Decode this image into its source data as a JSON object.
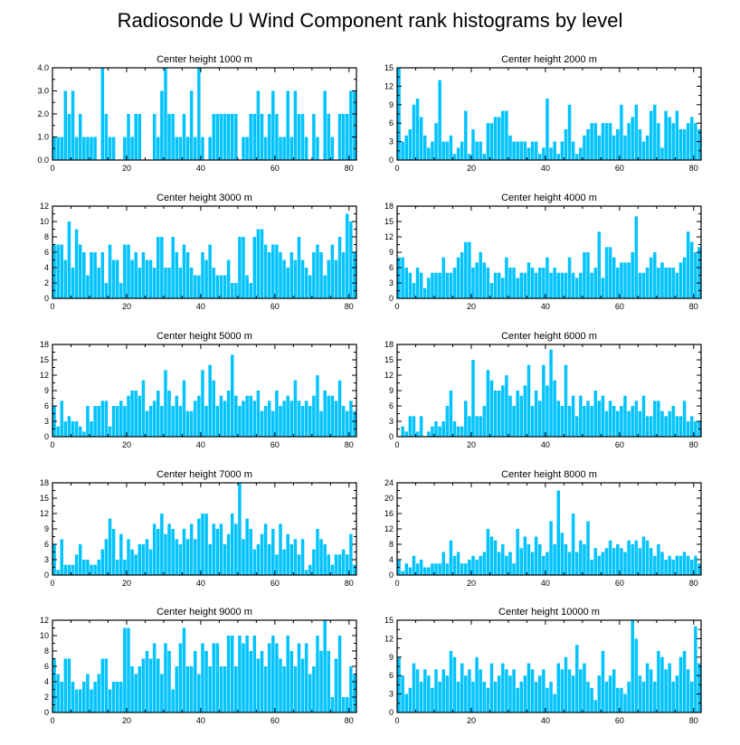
{
  "title": "Radiosonde U Wind Component rank histograms by level",
  "colors": {
    "bar": "#00c3ff",
    "axis": "#000000",
    "background": "#ffffff"
  },
  "chart_data": [
    {
      "type": "bar",
      "title": "Center height 1000 m",
      "xlim": [
        0,
        82
      ],
      "ylim": [
        0,
        4
      ],
      "xticks": [
        0,
        20,
        40,
        60,
        80
      ],
      "xtick_labels": [
        "0",
        "20",
        "40",
        "60",
        "80"
      ],
      "yticks": [
        0,
        1,
        2,
        3,
        4
      ],
      "ytick_labels": [
        "0.0",
        "1.0",
        "2.0",
        "3.0",
        "4.0"
      ],
      "values": [
        1,
        1,
        1,
        3,
        2,
        3,
        1,
        2,
        1,
        1,
        1,
        1,
        0,
        4,
        2,
        1,
        1,
        0,
        0,
        1,
        2,
        1,
        2,
        2,
        0,
        0,
        0,
        2,
        1,
        3,
        4,
        2,
        2,
        1,
        1,
        2,
        1,
        3,
        1,
        4,
        1,
        0,
        1,
        2,
        2,
        2,
        2,
        2,
        2,
        2,
        0,
        1,
        1,
        2,
        2,
        3,
        2,
        1,
        2,
        3,
        2,
        1,
        1,
        3,
        1,
        3,
        2,
        2,
        1,
        0,
        2,
        1,
        0,
        3,
        2,
        1,
        0,
        2,
        2,
        2,
        3,
        3
      ]
    },
    {
      "type": "bar",
      "title": "Center height 2000 m",
      "xlim": [
        0,
        82
      ],
      "ylim": [
        0,
        15
      ],
      "xticks": [
        0,
        20,
        40,
        60,
        80
      ],
      "xtick_labels": [
        "0",
        "20",
        "40",
        "60",
        "80"
      ],
      "yticks": [
        0,
        3,
        6,
        9,
        12,
        15
      ],
      "ytick_labels": [
        "0",
        "3",
        "6",
        "9",
        "12",
        "15"
      ],
      "values": [
        15,
        3,
        4,
        5,
        9,
        10,
        7,
        4,
        2,
        3,
        6,
        13,
        3,
        3,
        4,
        1,
        2,
        3,
        8,
        1,
        5,
        3,
        3,
        1,
        6,
        6,
        7,
        7,
        8,
        8,
        4,
        3,
        3,
        3,
        3,
        2,
        3,
        3,
        1,
        2,
        10,
        2,
        3,
        1,
        3,
        5,
        9,
        3,
        1,
        2,
        4,
        5,
        6,
        6,
        4,
        6,
        6,
        6,
        4,
        5,
        9,
        4,
        6,
        7,
        9,
        5,
        3,
        4,
        8,
        9,
        6,
        2,
        8,
        7,
        6,
        8,
        5,
        5,
        6,
        7,
        6,
        5
      ]
    },
    {
      "type": "bar",
      "title": "Center height 3000 m",
      "xlim": [
        0,
        82
      ],
      "ylim": [
        0,
        12
      ],
      "xticks": [
        0,
        20,
        40,
        60,
        80
      ],
      "xtick_labels": [
        "0",
        "20",
        "40",
        "60",
        "80"
      ],
      "yticks": [
        0,
        2,
        4,
        6,
        8,
        10,
        12
      ],
      "ytick_labels": [
        "0",
        "2",
        "4",
        "6",
        "8",
        "10",
        "12"
      ],
      "values": [
        7,
        7,
        7,
        5,
        10,
        4,
        9,
        7,
        6,
        3,
        6,
        6,
        4,
        6,
        2,
        7,
        5,
        5,
        2,
        7,
        7,
        5,
        6,
        4,
        6,
        5,
        5,
        4,
        8,
        8,
        4,
        4,
        8,
        6,
        4,
        7,
        6,
        4,
        3,
        3,
        6,
        5,
        7,
        4,
        3,
        3,
        3,
        5,
        2,
        2,
        8,
        8,
        3,
        2,
        8,
        9,
        9,
        7,
        6,
        7,
        7,
        6,
        5,
        4,
        6,
        5,
        8,
        5,
        4,
        3,
        6,
        7,
        6,
        3,
        5,
        7,
        5,
        8,
        6,
        11,
        10,
        6
      ]
    },
    {
      "type": "bar",
      "title": "Center height 4000 m",
      "xlim": [
        0,
        82
      ],
      "ylim": [
        0,
        18
      ],
      "xticks": [
        0,
        20,
        40,
        60,
        80
      ],
      "xtick_labels": [
        "0",
        "20",
        "40",
        "60",
        "80"
      ],
      "yticks": [
        0,
        3,
        6,
        9,
        12,
        15,
        18
      ],
      "ytick_labels": [
        "0",
        "3",
        "6",
        "9",
        "12",
        "15",
        "18"
      ],
      "values": [
        8,
        8,
        6,
        5,
        3,
        6,
        5,
        2,
        4,
        5,
        5,
        5,
        8,
        5,
        5,
        6,
        8,
        9,
        11,
        11,
        6,
        7,
        9,
        7,
        6,
        3,
        5,
        5,
        4,
        8,
        6,
        6,
        4,
        5,
        5,
        7,
        6,
        5,
        6,
        6,
        8,
        5,
        6,
        5,
        5,
        5,
        8,
        5,
        4,
        5,
        9,
        9,
        5,
        6,
        13,
        4,
        10,
        10,
        8,
        6,
        7,
        7,
        7,
        9,
        16,
        5,
        5,
        6,
        8,
        9,
        6,
        7,
        6,
        6,
        6,
        5,
        7,
        8,
        13,
        11,
        9,
        10
      ]
    },
    {
      "type": "bar",
      "title": "Center height 5000 m",
      "xlim": [
        0,
        82
      ],
      "ylim": [
        0,
        18
      ],
      "xticks": [
        0,
        20,
        40,
        60,
        80
      ],
      "xtick_labels": [
        "0",
        "20",
        "40",
        "60",
        "80"
      ],
      "yticks": [
        0,
        3,
        6,
        9,
        12,
        15,
        18
      ],
      "ytick_labels": [
        "0",
        "3",
        "6",
        "9",
        "12",
        "15",
        "18"
      ],
      "values": [
        6,
        2,
        7,
        3,
        4,
        3,
        3,
        2,
        1,
        6,
        3,
        6,
        6,
        7,
        7,
        2,
        6,
        6,
        7,
        6,
        8,
        9,
        9,
        8,
        11,
        5,
        6,
        7,
        9,
        6,
        13,
        9,
        6,
        8,
        6,
        11,
        5,
        5,
        7,
        8,
        13,
        6,
        14,
        11,
        6,
        8,
        7,
        9,
        16,
        8,
        6,
        7,
        8,
        8,
        7,
        9,
        5,
        6,
        7,
        5,
        9,
        6,
        7,
        8,
        7,
        11,
        7,
        6,
        7,
        6,
        8,
        12,
        5,
        9,
        8,
        8,
        7,
        11,
        6,
        5,
        7,
        5
      ]
    },
    {
      "type": "bar",
      "title": "Center height 6000 m",
      "xlim": [
        0,
        82
      ],
      "ylim": [
        0,
        18
      ],
      "xticks": [
        0,
        20,
        40,
        60,
        80
      ],
      "xtick_labels": [
        "0",
        "20",
        "40",
        "60",
        "80"
      ],
      "yticks": [
        0,
        3,
        6,
        9,
        12,
        15,
        18
      ],
      "ytick_labels": [
        "0",
        "3",
        "6",
        "9",
        "12",
        "15",
        "18"
      ],
      "values": [
        0,
        2,
        1,
        4,
        4,
        1,
        4,
        0,
        1,
        2,
        3,
        2,
        3,
        6,
        9,
        3,
        2,
        2,
        7,
        4,
        15,
        4,
        4,
        6,
        13,
        11,
        9,
        9,
        10,
        12,
        8,
        6,
        9,
        8,
        10,
        14,
        6,
        9,
        7,
        14,
        10,
        17,
        11,
        7,
        6,
        14,
        6,
        8,
        4,
        8,
        6,
        7,
        6,
        9,
        7,
        8,
        5,
        7,
        6,
        5,
        6,
        8,
        5,
        6,
        7,
        5,
        8,
        4,
        4,
        7,
        7,
        5,
        4,
        5,
        6,
        4,
        4,
        7,
        3,
        4,
        3,
        3
      ]
    },
    {
      "type": "bar",
      "title": "Center height 7000 m",
      "xlim": [
        0,
        82
      ],
      "ylim": [
        0,
        18
      ],
      "xticks": [
        0,
        20,
        40,
        60,
        80
      ],
      "xtick_labels": [
        "0",
        "20",
        "40",
        "60",
        "80"
      ],
      "yticks": [
        0,
        3,
        6,
        9,
        12,
        15,
        18
      ],
      "ytick_labels": [
        "0",
        "3",
        "6",
        "9",
        "12",
        "15",
        "18"
      ],
      "values": [
        6,
        1,
        7,
        2,
        2,
        2,
        4,
        6,
        3,
        3,
        2,
        2,
        3,
        5,
        7,
        11,
        9,
        3,
        8,
        3,
        7,
        5,
        4,
        6,
        6,
        7,
        5,
        10,
        9,
        12,
        8,
        10,
        9,
        7,
        6,
        9,
        7,
        10,
        7,
        11,
        12,
        12,
        6,
        10,
        9,
        10,
        6,
        8,
        12,
        10,
        18,
        7,
        11,
        9,
        5,
        6,
        8,
        10,
        6,
        9,
        4,
        10,
        5,
        8,
        6,
        7,
        4,
        7,
        1,
        2,
        5,
        9,
        7,
        6,
        4,
        2,
        4,
        4,
        5,
        4,
        8,
        2
      ]
    },
    {
      "type": "bar",
      "title": "Center height 8000 m",
      "xlim": [
        0,
        82
      ],
      "ylim": [
        0,
        24
      ],
      "xticks": [
        0,
        20,
        40,
        60,
        80
      ],
      "xtick_labels": [
        "0",
        "20",
        "40",
        "60",
        "80"
      ],
      "yticks": [
        0,
        4,
        8,
        12,
        16,
        20,
        24
      ],
      "ytick_labels": [
        "0",
        "4",
        "8",
        "12",
        "16",
        "20",
        "24"
      ],
      "values": [
        4,
        1,
        3,
        2,
        5,
        3,
        4,
        2,
        2,
        3,
        3,
        3,
        6,
        3,
        9,
        5,
        6,
        3,
        3,
        4,
        5,
        4,
        5,
        6,
        12,
        10,
        9,
        6,
        8,
        5,
        6,
        3,
        12,
        7,
        10,
        8,
        6,
        10,
        8,
        5,
        6,
        14,
        8,
        22,
        11,
        8,
        6,
        16,
        6,
        9,
        8,
        14,
        4,
        7,
        5,
        6,
        7,
        9,
        7,
        8,
        7,
        6,
        9,
        8,
        9,
        7,
        10,
        9,
        7,
        5,
        8,
        6,
        4,
        5,
        4,
        5,
        5,
        6,
        5,
        4,
        5,
        3
      ]
    },
    {
      "type": "bar",
      "title": "Center height 9000 m",
      "xlim": [
        0,
        82
      ],
      "ylim": [
        0,
        12
      ],
      "xticks": [
        0,
        20,
        40,
        60,
        80
      ],
      "xtick_labels": [
        "0",
        "20",
        "40",
        "60",
        "80"
      ],
      "yticks": [
        0,
        2,
        4,
        6,
        8,
        10,
        12
      ],
      "ytick_labels": [
        "0",
        "2",
        "4",
        "6",
        "8",
        "10",
        "12"
      ],
      "values": [
        7,
        5,
        4,
        7,
        7,
        4,
        3,
        3,
        4,
        5,
        3,
        4,
        5,
        7,
        7,
        3,
        4,
        4,
        4,
        11,
        11,
        6,
        5,
        6,
        7,
        8,
        7,
        9,
        7,
        5,
        9,
        8,
        3,
        6,
        9,
        11,
        6,
        6,
        8,
        5,
        9,
        8,
        6,
        9,
        9,
        6,
        6,
        10,
        10,
        6,
        10,
        9,
        10,
        8,
        10,
        7,
        8,
        6,
        9,
        10,
        9,
        7,
        6,
        10,
        8,
        6,
        9,
        7,
        9,
        5,
        6,
        10,
        8,
        12,
        8,
        2,
        7,
        10,
        2,
        2,
        6,
        5
      ]
    },
    {
      "type": "bar",
      "title": "Center height 10000 m",
      "xlim": [
        0,
        82
      ],
      "ylim": [
        0,
        15
      ],
      "xticks": [
        0,
        20,
        40,
        60,
        80
      ],
      "xtick_labels": [
        "0",
        "20",
        "40",
        "60",
        "80"
      ],
      "yticks": [
        0,
        3,
        6,
        9,
        12,
        15
      ],
      "ytick_labels": [
        "0",
        "3",
        "6",
        "9",
        "12",
        "15"
      ],
      "values": [
        9,
        6,
        3,
        4,
        8,
        7,
        5,
        7,
        6,
        4,
        7,
        5,
        7,
        6,
        10,
        9,
        5,
        8,
        6,
        7,
        5,
        9,
        7,
        5,
        4,
        8,
        5,
        6,
        8,
        7,
        6,
        7,
        4,
        5,
        6,
        8,
        7,
        5,
        6,
        7,
        4,
        5,
        3,
        8,
        7,
        9,
        7,
        6,
        11,
        7,
        8,
        5,
        4,
        2,
        6,
        10,
        5,
        6,
        7,
        4,
        4,
        3,
        5,
        15,
        12,
        6,
        5,
        8,
        7,
        5,
        10,
        9,
        7,
        8,
        5,
        6,
        9,
        10,
        7,
        5,
        14,
        8
      ]
    }
  ]
}
